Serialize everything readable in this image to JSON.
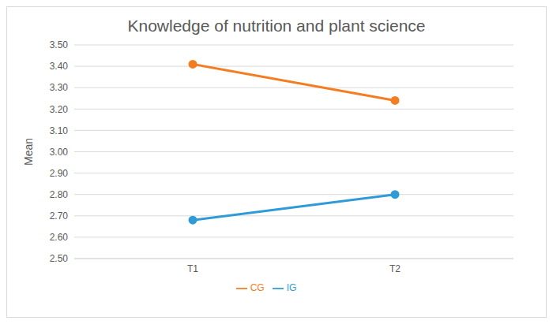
{
  "chart_data": {
    "type": "line",
    "title": "Knowledge of nutrition and plant science",
    "y_label": "Mean",
    "categories": [
      "T1",
      "T2"
    ],
    "series": [
      {
        "name": "IG",
        "color": "#2e9bd6",
        "values": [
          2.68,
          2.8
        ]
      },
      {
        "name": "CG",
        "color": "#f47c21",
        "values": [
          3.41,
          3.24
        ]
      }
    ],
    "ylim": [
      2.5,
      3.5
    ],
    "yticks": [
      {
        "value": 2.5,
        "label": "2.50"
      },
      {
        "value": 2.6,
        "label": "2.60"
      },
      {
        "value": 2.7,
        "label": "2.70"
      },
      {
        "value": 2.8,
        "label": "2.80"
      },
      {
        "value": 2.9,
        "label": "2.90"
      },
      {
        "value": 3.0,
        "label": "3.00"
      },
      {
        "value": 3.1,
        "label": "3.10"
      },
      {
        "value": 3.2,
        "label": "3.20"
      },
      {
        "value": 3.3,
        "label": "3.30"
      },
      {
        "value": 3.4,
        "label": "3.40"
      },
      {
        "value": 3.5,
        "label": "3.50"
      }
    ],
    "grid": true,
    "legend": "bottom",
    "marker": "circle"
  }
}
